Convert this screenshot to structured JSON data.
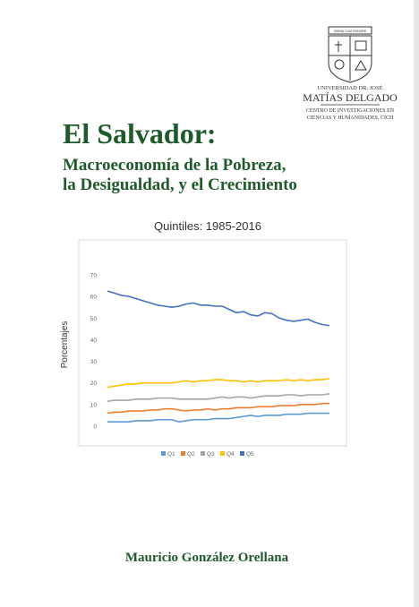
{
  "header": {
    "motto": "OMNIA CUM HONORE",
    "university_line1": "UNIVERSIDAD DR. JOSÉ",
    "university_line2": "MATÍAS DELGADO",
    "center_line1": "CENTRO DE INVESTIGACIONES EN",
    "center_line2": "CIENCIAS Y HUMANIDADES, CICH"
  },
  "title": "El Salvador:",
  "subtitle_line1": "Macroeconomía de la Pobreza,",
  "subtitle_line2": "la Desigualdad, y el Crecimiento",
  "author": "Mauricio González Orellana",
  "chart_data": {
    "type": "line",
    "title": "Quintiles: 1985-2016",
    "y_label": "Porcentajes",
    "ylim": [
      0,
      70
    ],
    "yticks": [
      0,
      10,
      20,
      30,
      40,
      50,
      60,
      70
    ],
    "grid": false,
    "legend": "bottom",
    "series": [
      {
        "name": "Q1",
        "color": "#5b9bd5",
        "values": [
          2,
          2,
          2,
          2,
          2.5,
          2.5,
          2.5,
          3,
          3,
          3,
          2,
          2.5,
          3,
          3,
          3,
          3.5,
          3.5,
          3.5,
          4,
          4.5,
          5,
          4.5,
          5,
          5,
          5,
          5.5,
          5.5,
          5.5,
          6,
          6,
          6,
          6
        ]
      },
      {
        "name": "Q2",
        "color": "#ed7d31",
        "values": [
          6,
          6.5,
          6.5,
          7,
          7,
          7,
          7.5,
          7.5,
          8,
          8,
          7.5,
          7,
          7.5,
          7.5,
          8,
          7.5,
          8,
          8,
          8.5,
          8.5,
          8.5,
          9,
          9,
          9,
          9.5,
          9.5,
          9.5,
          10,
          10,
          10,
          10.5,
          10.5
        ]
      },
      {
        "name": "Q3",
        "color": "#a5a5a5",
        "values": [
          11.5,
          12,
          12,
          12,
          12.5,
          12.5,
          12.5,
          13,
          13,
          13,
          12.5,
          12.5,
          12.5,
          12.5,
          12.5,
          13,
          13.5,
          13,
          13.5,
          13.5,
          13,
          13.5,
          14,
          14,
          14,
          14.5,
          14.5,
          14,
          14.5,
          14.5,
          14.5,
          15
        ]
      },
      {
        "name": "Q4",
        "color": "#ffc000",
        "values": [
          18,
          18.5,
          19,
          19.5,
          19.5,
          20,
          20,
          20,
          20,
          20,
          20.5,
          21,
          20.5,
          21,
          21,
          21.5,
          21.5,
          21,
          21,
          20.5,
          21,
          20.5,
          21,
          21,
          21,
          21.5,
          21,
          21.5,
          21,
          21.5,
          21.5,
          22
        ]
      },
      {
        "name": "Q5",
        "color": "#4472c4",
        "values": [
          62.5,
          61.5,
          60.5,
          60,
          59,
          58,
          57,
          56,
          55.5,
          55,
          55.5,
          56.5,
          57,
          56,
          56,
          55.5,
          55.5,
          54,
          52.5,
          53,
          51.5,
          51,
          52.5,
          52,
          50,
          49,
          48.5,
          49,
          49.5,
          48,
          47,
          46.5
        ]
      }
    ]
  }
}
